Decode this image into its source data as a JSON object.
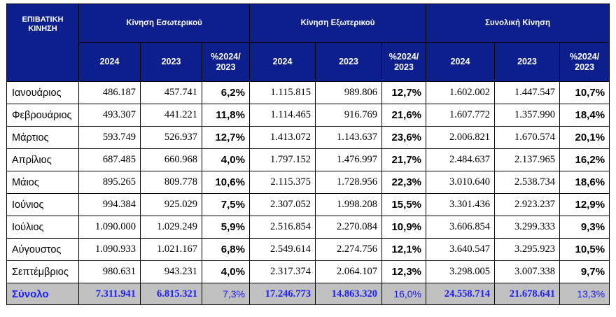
{
  "table": {
    "corner_header": "ΕΠΙΒΑΤΙΚΗ ΚΙΝΗΣΗ",
    "groups": [
      "Κίνηση Εσωτερικού",
      "Κίνηση Εξωτερικού",
      "Συνολική Κίνηση"
    ],
    "sub_headers": [
      "2024",
      "2023",
      "%2024/ 2023"
    ],
    "rows": [
      {
        "month": "Ιανουάριος",
        "values": [
          "486.187",
          "457.741",
          "6,2%",
          "1.115.815",
          "989.806",
          "12,7%",
          "1.602.002",
          "1.447.547",
          "10,7%"
        ]
      },
      {
        "month": "Φεβρουάριος",
        "values": [
          "493.307",
          "441.221",
          "11,8%",
          "1.114.465",
          "916.769",
          "21,6%",
          "1.607.772",
          "1.357.990",
          "18,4%"
        ]
      },
      {
        "month": "Μάρτιος",
        "values": [
          "593.749",
          "526.937",
          "12,7%",
          "1.413.072",
          "1.143.637",
          "23,6%",
          "2.006.821",
          "1.670.574",
          "20,1%"
        ]
      },
      {
        "month": "Απρίλιος",
        "values": [
          "687.485",
          "660.968",
          "4,0%",
          "1.797.152",
          "1.476.997",
          "21,7%",
          "2.484.637",
          "2.137.965",
          "16,2%"
        ]
      },
      {
        "month": "Μάιος",
        "values": [
          "895.265",
          "809.778",
          "10,6%",
          "2.115.375",
          "1.728.956",
          "22,3%",
          "3.010.640",
          "2.538.734",
          "18,6%"
        ]
      },
      {
        "month": "Ιούνιος",
        "values": [
          "994.384",
          "925.029",
          "7,5%",
          "2.307.052",
          "1.998.208",
          "15,5%",
          "3.301.436",
          "2.923.237",
          "12,9%"
        ]
      },
      {
        "month": "Ιούλιος",
        "values": [
          "1.090.000",
          "1.029.249",
          "5,9%",
          "2.516.854",
          "2.270.084",
          "10,9%",
          "3.606.854",
          "3.299.333",
          "9,3%"
        ]
      },
      {
        "month": "Αύγουστος",
        "values": [
          "1.090.933",
          "1.021.167",
          "6,8%",
          "2.549.614",
          "2.274.756",
          "12,1%",
          "3.640.547",
          "3.295.923",
          "10,5%"
        ]
      },
      {
        "month": "Σεπτέμβριος",
        "values": [
          "980.631",
          "943.231",
          "4,0%",
          "2.317.374",
          "2.064.107",
          "12,3%",
          "3.298.005",
          "3.007.338",
          "9,7%"
        ]
      }
    ],
    "total": {
      "month": "Σύνολο",
      "values": [
        "7.311.941",
        "6.815.321",
        "7,3%",
        "17.246.773",
        "14.863.320",
        "16,0%",
        "24.558.714",
        "21.678.641",
        "13,3%"
      ]
    }
  },
  "colors": {
    "header_bg": "#0d1f8c",
    "total_bg": "#c0c0c0",
    "total_text": "#1c1cff"
  }
}
